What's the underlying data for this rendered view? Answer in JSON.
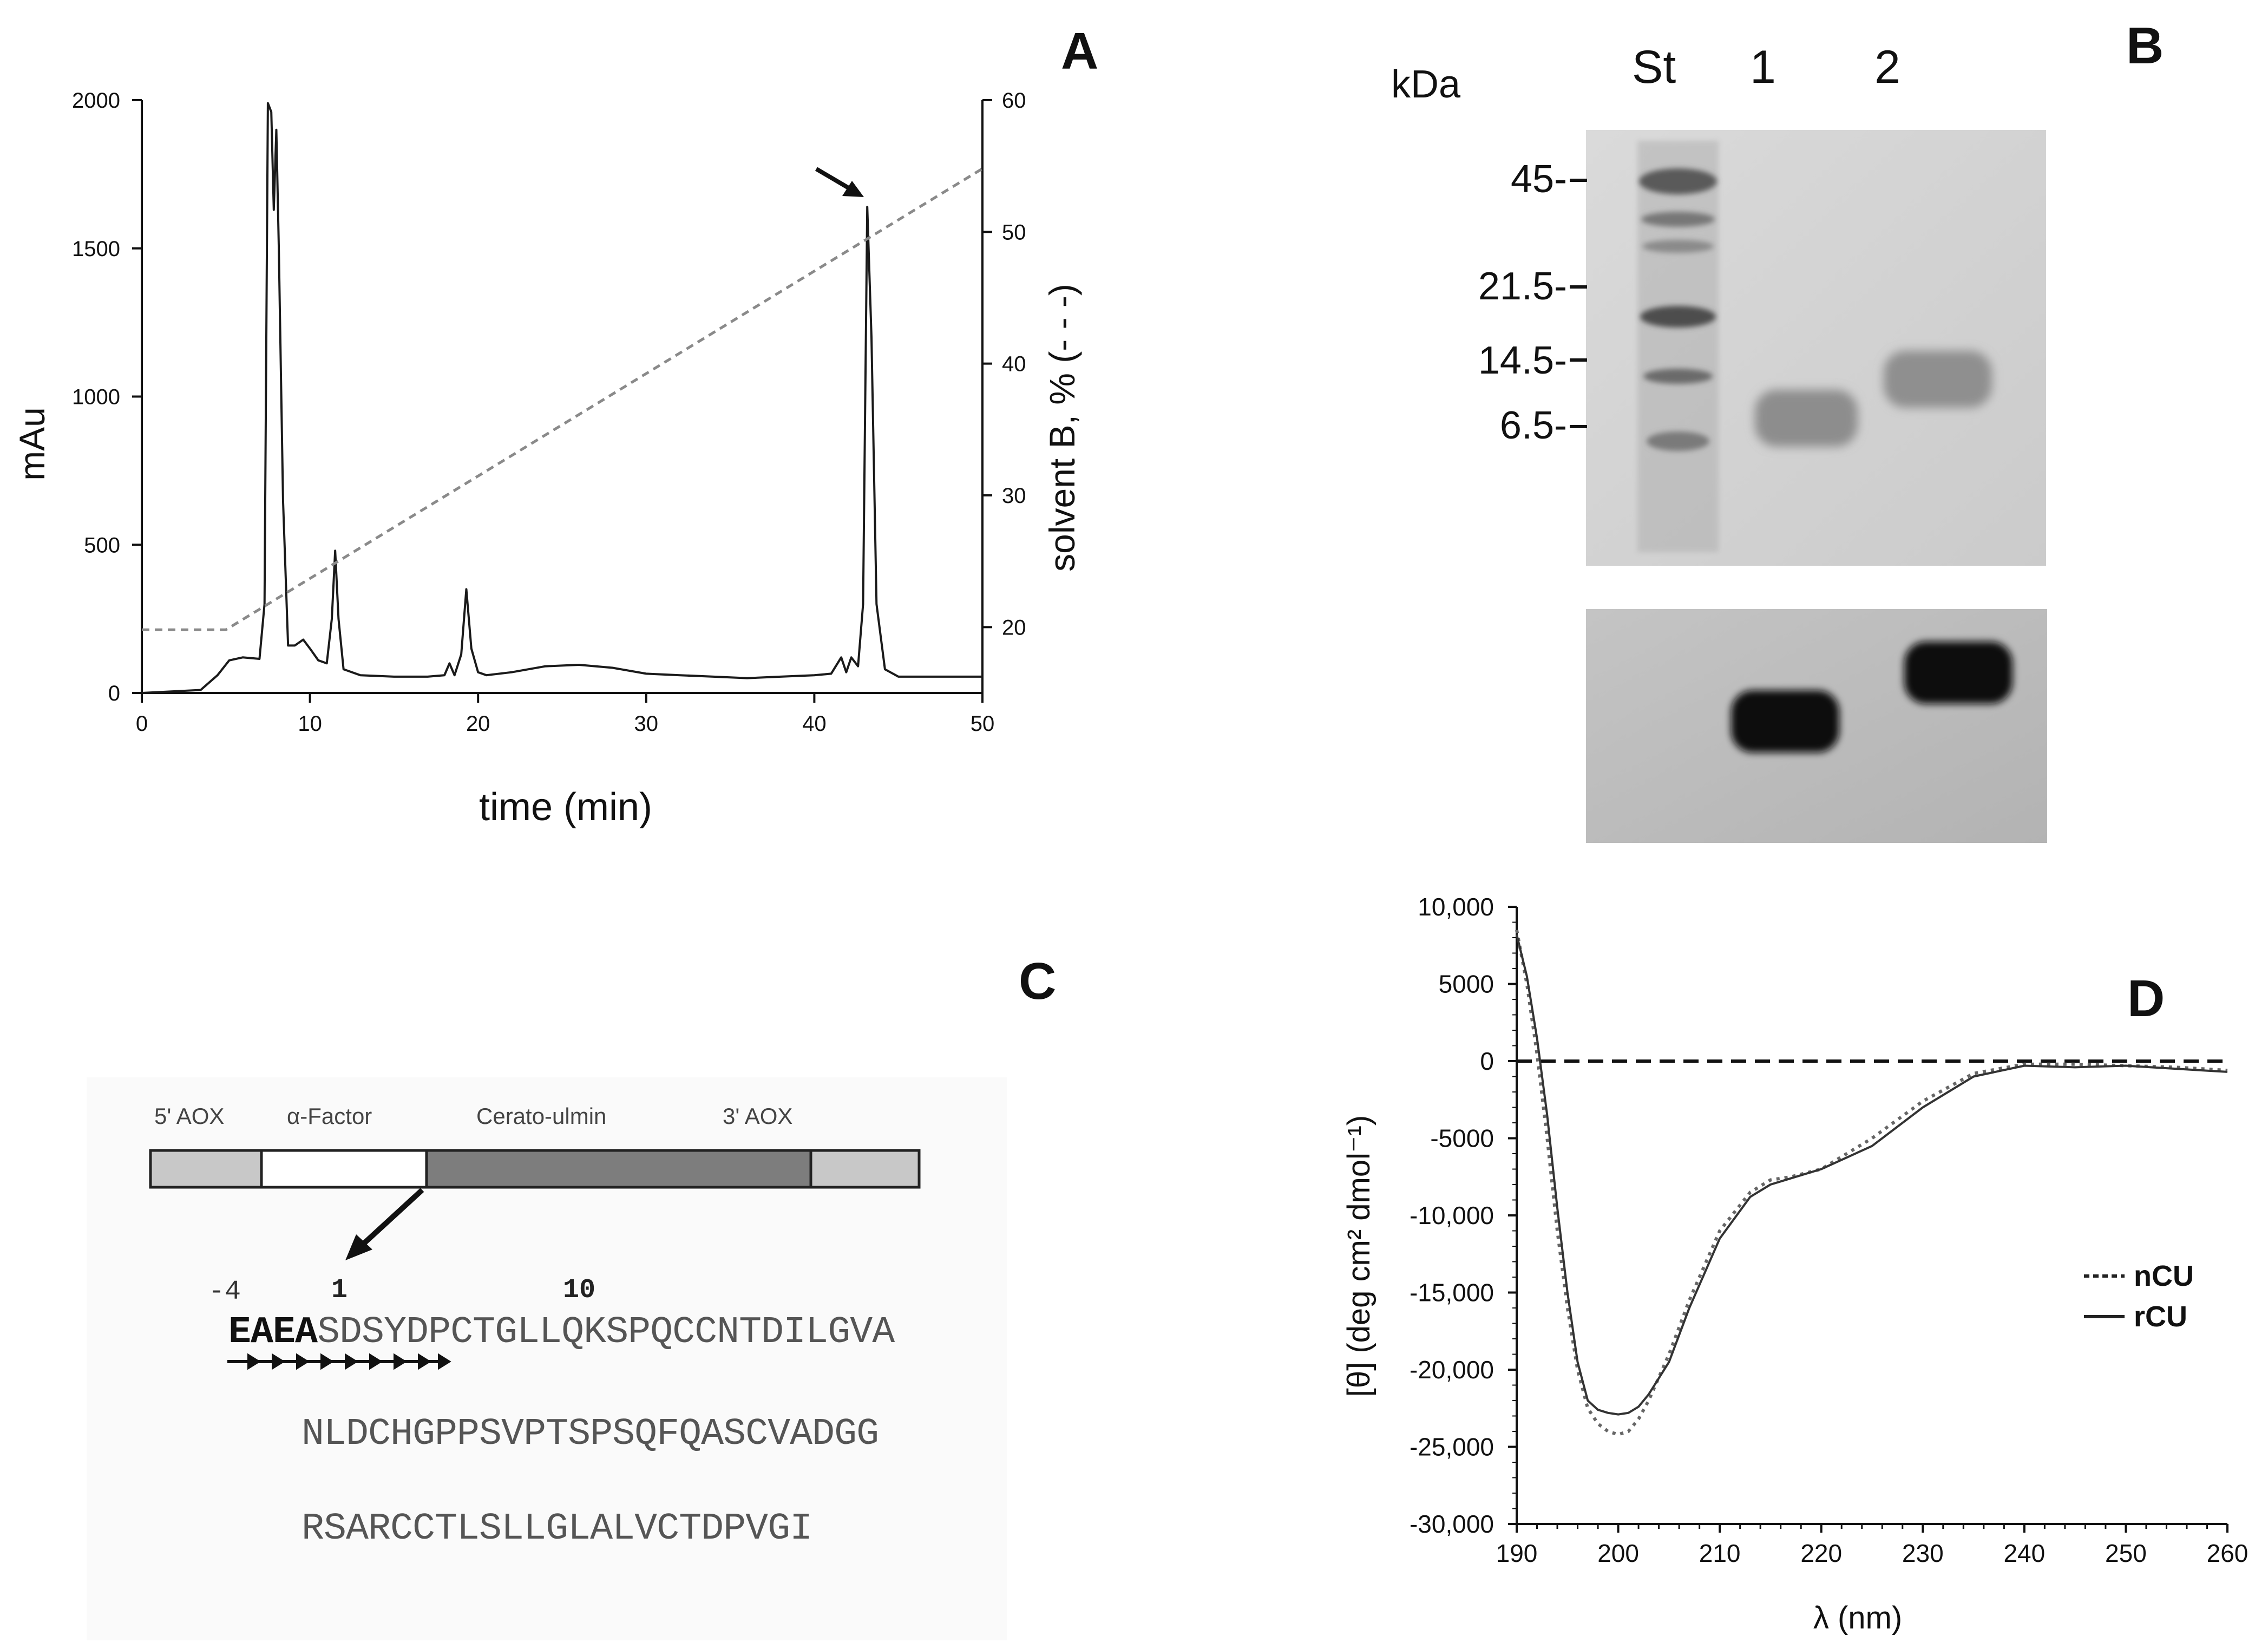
{
  "panel_labels": {
    "a": "A",
    "b": "B",
    "c": "C",
    "d": "D"
  },
  "colors": {
    "line": "#1a1a1a",
    "dashed": "#8a8a8a",
    "gel_bg": "#d4d4d4",
    "blot_bg": "#bdbdbd"
  },
  "panel_a": {
    "ylabel_left": "mAu",
    "ylabel_right": "solvent B, % (- - -)",
    "xlabel": "time (min)"
  },
  "panel_b": {
    "unit_label": "kDa",
    "lane_labels": [
      "St",
      "1",
      "2"
    ],
    "marker_labels": [
      "45-",
      "21.5-",
      "14.5-",
      "6.5-"
    ]
  },
  "panel_c": {
    "construct_segments": [
      "5' AOX",
      "α-Factor",
      "Cerato-ulmin",
      "3' AOX"
    ],
    "numbering": [
      "-4",
      "1",
      "10"
    ],
    "sequence_bold": "EAEA",
    "sequence_line1_rest": "SDSYDPCTGLLQKSPQCCNTDILGVA",
    "sequence_line2": "NLDCHGPPSVPTSPSQFQASCVADGG",
    "sequence_line3": "RSARCCTLSLLGLALVCTDPVGI"
  },
  "panel_d": {
    "ylabel": "[θ] (deg cm² dmol⁻¹)",
    "xlabel": "λ (nm)",
    "legend": [
      "nCU",
      "rCU"
    ]
  },
  "chart_data": [
    {
      "type": "line",
      "panel": "A",
      "title": "",
      "xlabel": "time (min)",
      "ylabel": "mAu",
      "y2label": "solvent B, % (- - -)",
      "xlim": [
        0,
        50
      ],
      "ylim": [
        0,
        2000
      ],
      "y2lim": [
        15,
        60
      ],
      "xticks": [
        0,
        10,
        20,
        30,
        40,
        50
      ],
      "yticks": [
        0,
        500,
        1000,
        1500,
        2000
      ],
      "y2ticks": [
        20,
        30,
        40,
        50,
        60
      ],
      "grid": false,
      "series": [
        {
          "style": "solid",
          "axis": "left",
          "x": [
            0,
            3.5,
            4.5,
            5.2,
            6,
            7,
            7.3,
            7.5,
            7.7,
            7.85,
            8.0,
            8.15,
            8.4,
            8.7,
            9.1,
            9.6,
            10.0,
            10.5,
            11.0,
            11.3,
            11.5,
            11.7,
            12.0,
            13,
            15,
            17,
            18,
            18.3,
            18.6,
            19,
            19.3,
            19.6,
            20.0,
            20.5,
            22,
            24,
            26,
            28,
            30,
            32,
            34,
            36,
            38,
            40,
            41,
            41.6,
            41.9,
            42.2,
            42.6,
            42.9,
            43.15,
            43.4,
            43.7,
            44.2,
            45,
            50
          ],
          "y": [
            0,
            10,
            60,
            110,
            120,
            115,
            300,
            1990,
            1960,
            1630,
            1900,
            1500,
            650,
            160,
            160,
            180,
            150,
            110,
            100,
            250,
            480,
            250,
            80,
            60,
            55,
            55,
            60,
            100,
            60,
            130,
            350,
            150,
            70,
            60,
            70,
            90,
            95,
            85,
            65,
            60,
            55,
            50,
            55,
            60,
            65,
            120,
            70,
            120,
            90,
            300,
            1640,
            1200,
            300,
            80,
            55,
            55
          ]
        },
        {
          "style": "dashed",
          "axis": "right",
          "x": [
            0,
            5,
            50
          ],
          "y": [
            19.8,
            19.8,
            54.8
          ]
        }
      ]
    },
    {
      "type": "line",
      "panel": "D",
      "title": "",
      "xlabel": "λ (nm)",
      "ylabel": "[θ] (deg cm² dmol⁻¹)",
      "xlim": [
        190,
        260
      ],
      "ylim": [
        -30000,
        10000
      ],
      "xticks": [
        190,
        200,
        210,
        220,
        230,
        240,
        250,
        260
      ],
      "yticks": [
        -30000,
        -25000,
        -20000,
        -15000,
        -10000,
        -5000,
        0,
        5000,
        10000
      ],
      "ytick_labels": [
        "-30,000",
        "-25,000",
        "-20,000",
        "-15,000",
        "-10,000",
        "-5000",
        "0",
        "5000",
        "10,000"
      ],
      "grid": false,
      "legend_position": "right",
      "zero_line": "dashed",
      "series": [
        {
          "name": "nCU",
          "style": "dotted",
          "x": [
            190,
            191,
            192,
            193,
            194,
            195,
            196,
            197,
            198,
            199,
            200,
            201,
            202,
            203,
            205,
            207,
            210,
            213,
            215,
            217,
            220,
            225,
            230,
            235,
            240,
            245,
            250,
            255,
            260
          ],
          "y": [
            8500,
            5000,
            500,
            -5000,
            -11000,
            -16000,
            -20000,
            -22500,
            -23500,
            -24000,
            -24200,
            -24000,
            -23200,
            -22000,
            -19000,
            -15500,
            -11000,
            -8500,
            -7700,
            -7500,
            -7000,
            -5000,
            -2600,
            -800,
            -200,
            -200,
            -300,
            -400,
            -600
          ]
        },
        {
          "name": "rCU",
          "style": "solid",
          "x": [
            190,
            191,
            192,
            193,
            194,
            195,
            196,
            197,
            198,
            199,
            200,
            201,
            202,
            203,
            205,
            207,
            210,
            213,
            215,
            217,
            220,
            225,
            230,
            235,
            240,
            245,
            250,
            255,
            260
          ],
          "y": [
            8200,
            5500,
            1500,
            -3500,
            -9500,
            -15000,
            -19500,
            -22000,
            -22600,
            -22800,
            -22900,
            -22800,
            -22400,
            -21600,
            -19500,
            -16000,
            -11500,
            -8800,
            -8000,
            -7600,
            -7000,
            -5500,
            -3000,
            -1000,
            -300,
            -400,
            -300,
            -500,
            -700
          ]
        }
      ]
    }
  ]
}
